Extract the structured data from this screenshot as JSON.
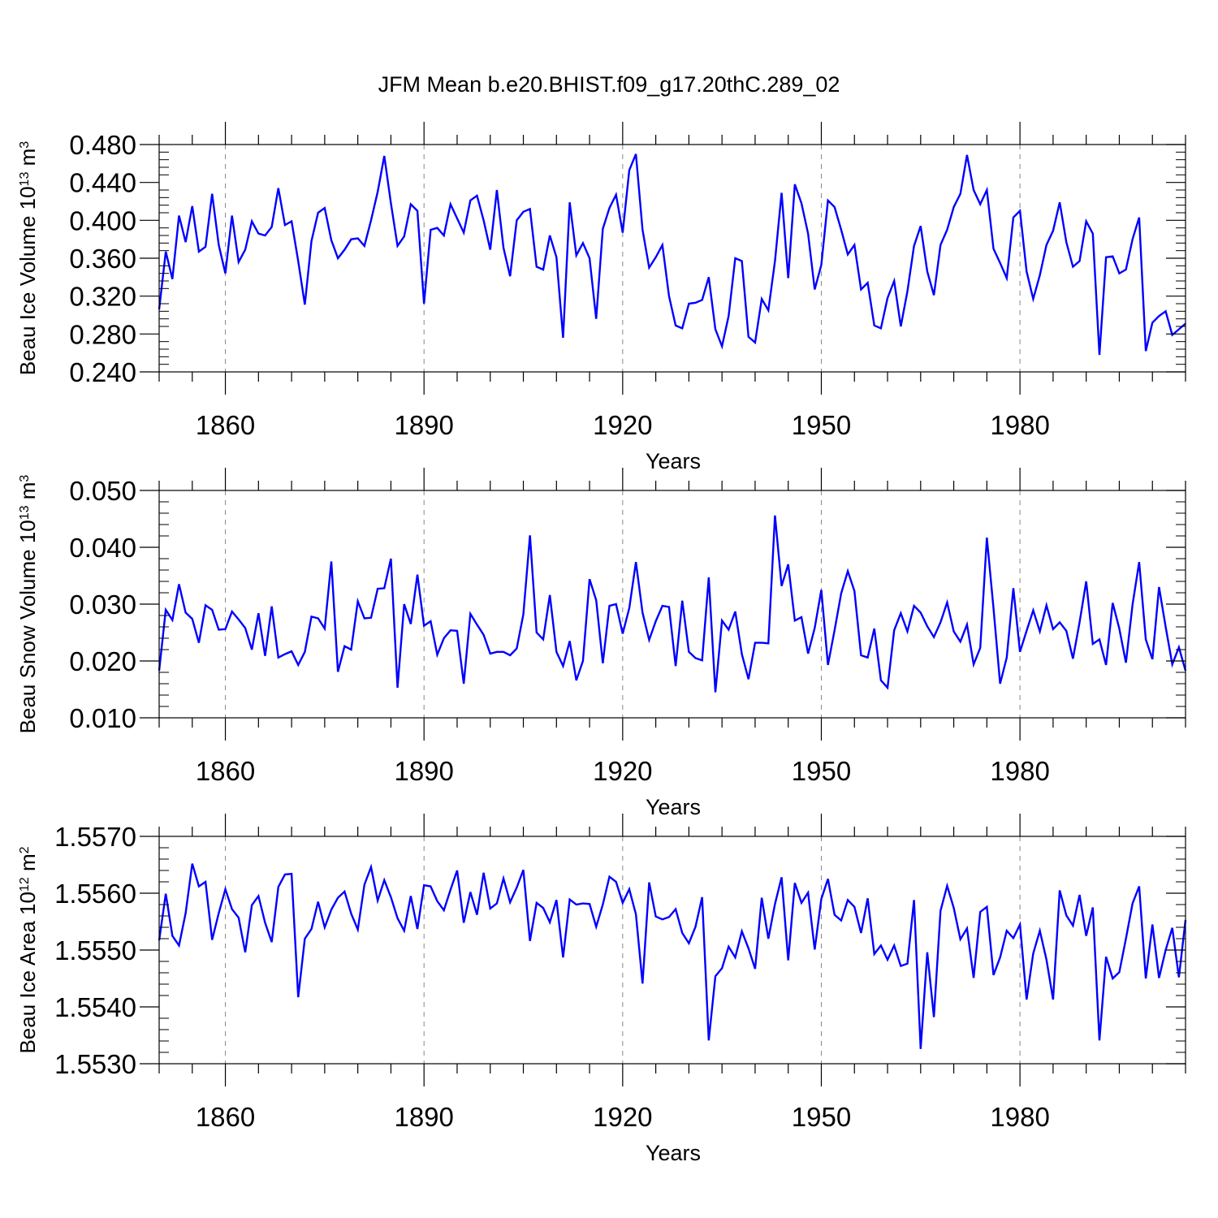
{
  "title": "JFM Mean b.e20.BHIST.f09_g17.20thC.289_02",
  "colors": {
    "line": "#0000ff",
    "axis": "#000000",
    "grid": "#888888"
  },
  "chart_data": [
    {
      "type": "line",
      "title": "JFM Mean b.e20.BHIST.f09_g17.20thC.289_02",
      "xlabel": "Years",
      "ylabel": {
        "prefix": "Beau Ice Volume 10",
        "exp": "13",
        "unit": " m",
        "unit_exp": "3"
      },
      "xlim": [
        1850,
        2005
      ],
      "ylim": [
        0.24,
        0.48
      ],
      "xticks": [
        1860,
        1890,
        1920,
        1950,
        1980
      ],
      "xtick_labels": [
        "1860",
        "1890",
        "1920",
        "1950",
        "1980"
      ],
      "yticks": [
        0.24,
        0.28,
        0.32,
        0.36,
        0.4,
        0.44,
        0.48
      ],
      "ytick_labels": [
        "0.240",
        "0.280",
        "0.320",
        "0.360",
        "0.400",
        "0.440",
        "0.480"
      ],
      "grid": "vertical dashed at major x ticks",
      "series": [
        {
          "name": "Beau Ice Volume",
          "x_start": 1850,
          "values": [
            0.306,
            0.367,
            0.338,
            0.405,
            0.377,
            0.415,
            0.367,
            0.372,
            0.428,
            0.374,
            0.344,
            0.405,
            0.356,
            0.369,
            0.399,
            0.386,
            0.384,
            0.393,
            0.434,
            0.395,
            0.399,
            0.357,
            0.311,
            0.378,
            0.408,
            0.413,
            0.379,
            0.36,
            0.369,
            0.38,
            0.381,
            0.373,
            0.4,
            0.43,
            0.468,
            0.418,
            0.373,
            0.383,
            0.417,
            0.41,
            0.312,
            0.39,
            0.392,
            0.384,
            0.417,
            0.402,
            0.387,
            0.421,
            0.426,
            0.4,
            0.369,
            0.432,
            0.371,
            0.341,
            0.4,
            0.409,
            0.412,
            0.351,
            0.348,
            0.384,
            0.361,
            0.276,
            0.419,
            0.363,
            0.376,
            0.36,
            0.296,
            0.391,
            0.413,
            0.427,
            0.387,
            0.453,
            0.47,
            0.39,
            0.35,
            0.361,
            0.374,
            0.32,
            0.289,
            0.286,
            0.312,
            0.313,
            0.316,
            0.34,
            0.285,
            0.267,
            0.299,
            0.36,
            0.357,
            0.277,
            0.271,
            0.317,
            0.305,
            0.357,
            0.429,
            0.339,
            0.438,
            0.418,
            0.386,
            0.327,
            0.353,
            0.421,
            0.414,
            0.39,
            0.364,
            0.374,
            0.327,
            0.334,
            0.289,
            0.286,
            0.318,
            0.336,
            0.288,
            0.325,
            0.373,
            0.394,
            0.346,
            0.321,
            0.374,
            0.39,
            0.414,
            0.428,
            0.469,
            0.432,
            0.417,
            0.432,
            0.37,
            0.355,
            0.339,
            0.403,
            0.41,
            0.346,
            0.317,
            0.342,
            0.374,
            0.389,
            0.419,
            0.377,
            0.351,
            0.357,
            0.399,
            0.386,
            0.258,
            0.361,
            0.362,
            0.344,
            0.348,
            0.38,
            0.403,
            0.262,
            0.292,
            0.299,
            0.304,
            0.279,
            0.285,
            0.291
          ]
        }
      ]
    },
    {
      "type": "line",
      "title": "",
      "xlabel": "Years",
      "ylabel": {
        "prefix": "Beau Snow Volume 10",
        "exp": "13",
        "unit": " m",
        "unit_exp": "3"
      },
      "xlim": [
        1850,
        2005
      ],
      "ylim": [
        0.01,
        0.05
      ],
      "xticks": [
        1860,
        1890,
        1920,
        1950,
        1980
      ],
      "xtick_labels": [
        "1860",
        "1890",
        "1920",
        "1950",
        "1980"
      ],
      "yticks": [
        0.01,
        0.02,
        0.03,
        0.04,
        0.05
      ],
      "ytick_labels": [
        "0.010",
        "0.020",
        "0.030",
        "0.040",
        "0.050"
      ],
      "grid": "vertical dashed at major x ticks",
      "series": [
        {
          "name": "Beau Snow Volume",
          "x_start": 1850,
          "values": [
            0.0183,
            0.029,
            0.0272,
            0.0335,
            0.0285,
            0.0274,
            0.0232,
            0.0298,
            0.029,
            0.0255,
            0.0256,
            0.0287,
            0.0273,
            0.0258,
            0.022,
            0.0284,
            0.0209,
            0.0296,
            0.0206,
            0.0212,
            0.0217,
            0.0193,
            0.0216,
            0.0278,
            0.0275,
            0.0257,
            0.0375,
            0.0181,
            0.0226,
            0.022,
            0.0305,
            0.0275,
            0.0276,
            0.0327,
            0.0328,
            0.038,
            0.0153,
            0.03,
            0.0265,
            0.0352,
            0.0262,
            0.027,
            0.0211,
            0.024,
            0.0254,
            0.0253,
            0.016,
            0.0283,
            0.0264,
            0.0246,
            0.0213,
            0.0216,
            0.0216,
            0.021,
            0.0222,
            0.0282,
            0.0421,
            0.025,
            0.0238,
            0.0316,
            0.0216,
            0.0191,
            0.0235,
            0.0166,
            0.02,
            0.0344,
            0.0307,
            0.0196,
            0.0297,
            0.03,
            0.0248,
            0.0293,
            0.0374,
            0.0285,
            0.0237,
            0.027,
            0.0297,
            0.0295,
            0.0191,
            0.0306,
            0.0216,
            0.0205,
            0.0201,
            0.0347,
            0.0145,
            0.0271,
            0.0255,
            0.0287,
            0.0212,
            0.0168,
            0.0232,
            0.0232,
            0.0231,
            0.0456,
            0.0332,
            0.037,
            0.0271,
            0.0277,
            0.0213,
            0.0258,
            0.0325,
            0.0193,
            0.0254,
            0.0319,
            0.0358,
            0.0323,
            0.021,
            0.0206,
            0.0257,
            0.0166,
            0.0153,
            0.0254,
            0.0284,
            0.0252,
            0.0297,
            0.0285,
            0.0261,
            0.0242,
            0.0268,
            0.0303,
            0.0252,
            0.0234,
            0.0264,
            0.0194,
            0.0223,
            0.0417,
            0.0293,
            0.016,
            0.0206,
            0.0328,
            0.0216,
            0.0253,
            0.0289,
            0.0252,
            0.0298,
            0.0256,
            0.0268,
            0.0253,
            0.0204,
            0.0268,
            0.034,
            0.023,
            0.0238,
            0.0193,
            0.0302,
            0.0257,
            0.0197,
            0.0299,
            0.0374,
            0.0238,
            0.0203,
            0.033,
            0.026,
            0.0194,
            0.0224,
            0.0183
          ]
        }
      ]
    },
    {
      "type": "line",
      "title": "",
      "xlabel": "Years",
      "ylabel": {
        "prefix": "Beau Ice Area 10",
        "exp": "12",
        "unit": " m",
        "unit_exp": "2"
      },
      "xlim": [
        1850,
        2005
      ],
      "ylim": [
        1.553,
        1.557
      ],
      "xticks": [
        1860,
        1890,
        1920,
        1950,
        1980
      ],
      "xtick_labels": [
        "1860",
        "1890",
        "1920",
        "1950",
        "1980"
      ],
      "yticks": [
        1.553,
        1.554,
        1.555,
        1.556,
        1.557
      ],
      "ytick_labels": [
        "1.5530",
        "1.5540",
        "1.5550",
        "1.5560",
        "1.5570"
      ],
      "grid": "vertical dashed at major x ticks",
      "series": [
        {
          "name": "Beau Ice Area",
          "x_start": 1850,
          "values": [
            1.55517,
            1.55599,
            1.55525,
            1.55508,
            1.55565,
            1.55652,
            1.55612,
            1.5562,
            1.55518,
            1.55565,
            1.55607,
            1.55572,
            1.55557,
            1.55496,
            1.55579,
            1.55595,
            1.55548,
            1.55514,
            1.55611,
            1.55633,
            1.55634,
            1.55417,
            1.5552,
            1.55537,
            1.55585,
            1.5554,
            1.55571,
            1.55592,
            1.55603,
            1.55564,
            1.55536,
            1.55615,
            1.55646,
            1.55587,
            1.55623,
            1.55593,
            1.55556,
            1.55534,
            1.55595,
            1.55537,
            1.55614,
            1.55612,
            1.55586,
            1.5557,
            1.55606,
            1.5564,
            1.55548,
            1.55602,
            1.55562,
            1.55636,
            1.55573,
            1.55582,
            1.55626,
            1.55584,
            1.5561,
            1.55641,
            1.55516,
            1.55583,
            1.55574,
            1.55549,
            1.55588,
            1.55487,
            1.55589,
            1.5558,
            1.55582,
            1.55581,
            1.55541,
            1.5558,
            1.55629,
            1.5562,
            1.55583,
            1.55607,
            1.55563,
            1.55441,
            1.55619,
            1.55559,
            1.55554,
            1.55558,
            1.55572,
            1.5553,
            1.55512,
            1.55541,
            1.55593,
            1.55341,
            1.55454,
            1.55468,
            1.55506,
            1.55487,
            1.55533,
            1.55503,
            1.55467,
            1.55592,
            1.5552,
            1.55581,
            1.55628,
            1.55482,
            1.55618,
            1.55583,
            1.55601,
            1.55501,
            1.5559,
            1.55625,
            1.55562,
            1.55552,
            1.55588,
            1.55576,
            1.5553,
            1.55591,
            1.55493,
            1.55508,
            1.55483,
            1.55508,
            1.55472,
            1.55476,
            1.55588,
            1.55326,
            1.55496,
            1.55382,
            1.55569,
            1.55613,
            1.55574,
            1.55519,
            1.55538,
            1.55451,
            1.55567,
            1.55576,
            1.55456,
            1.55487,
            1.55534,
            1.55521,
            1.55545,
            1.55413,
            1.55494,
            1.55534,
            1.55483,
            1.55413,
            1.55605,
            1.55561,
            1.55543,
            1.55597,
            1.55525,
            1.55575,
            1.55341,
            1.55488,
            1.5545,
            1.55461,
            1.5552,
            1.55582,
            1.55612,
            1.5545,
            1.55545,
            1.55451,
            1.555,
            1.55539,
            1.55452,
            1.55553
          ]
        }
      ]
    }
  ]
}
